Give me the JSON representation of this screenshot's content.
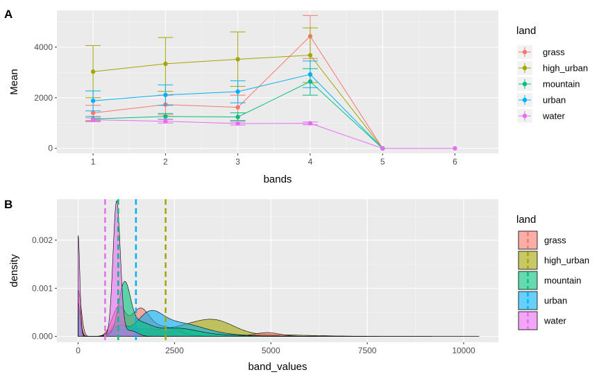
{
  "colors": {
    "grass": "#F8766D",
    "high_urban": "#A3A500",
    "mountain": "#00BF7D",
    "urban": "#00B0F6",
    "water": "#E76BF3"
  },
  "chart_data": [
    {
      "tag": "A",
      "type": "line",
      "xlabel": "bands",
      "ylabel": "Mean",
      "xlim": [
        0.5,
        6.6
      ],
      "ylim": [
        -200,
        5450
      ],
      "x_ticks": [
        1,
        2,
        3,
        4,
        5,
        6
      ],
      "y_ticks": [
        0,
        2000,
        4000
      ],
      "grid": true,
      "legend": {
        "title": "land",
        "position": "right"
      },
      "series": [
        {
          "name": "grass",
          "points": [
            {
              "x": 1,
              "y": 1400,
              "lo": 1100,
              "hi": 1700
            },
            {
              "x": 2,
              "y": 1730,
              "lo": 1330,
              "hi": 2100
            },
            {
              "x": 3,
              "y": 1620,
              "lo": 1100,
              "hi": 2100
            },
            {
              "x": 4,
              "y": 4430,
              "lo": 3550,
              "hi": 5250
            },
            {
              "x": 5,
              "y": 0,
              "lo": 0,
              "hi": 0
            }
          ]
        },
        {
          "name": "high_urban",
          "points": [
            {
              "x": 1,
              "y": 3030,
              "lo": 2000,
              "hi": 4060
            },
            {
              "x": 2,
              "y": 3340,
              "lo": 2250,
              "hi": 4380
            },
            {
              "x": 3,
              "y": 3520,
              "lo": 2450,
              "hi": 4600
            },
            {
              "x": 4,
              "y": 3680,
              "lo": 2600,
              "hi": 4760
            },
            {
              "x": 5,
              "y": 0,
              "lo": 0,
              "hi": 0
            }
          ]
        },
        {
          "name": "mountain",
          "points": [
            {
              "x": 1,
              "y": 1160,
              "lo": 1060,
              "hi": 1260
            },
            {
              "x": 2,
              "y": 1260,
              "lo": 1150,
              "hi": 1380
            },
            {
              "x": 3,
              "y": 1240,
              "lo": 1100,
              "hi": 1400
            },
            {
              "x": 4,
              "y": 2640,
              "lo": 2100,
              "hi": 3150
            },
            {
              "x": 5,
              "y": 0,
              "lo": 0,
              "hi": 0
            }
          ]
        },
        {
          "name": "urban",
          "points": [
            {
              "x": 1,
              "y": 1880,
              "lo": 1480,
              "hi": 2270
            },
            {
              "x": 2,
              "y": 2110,
              "lo": 1700,
              "hi": 2510
            },
            {
              "x": 3,
              "y": 2240,
              "lo": 1800,
              "hi": 2670
            },
            {
              "x": 4,
              "y": 2920,
              "lo": 2400,
              "hi": 3450
            },
            {
              "x": 5,
              "y": 0,
              "lo": 0,
              "hi": 0
            }
          ]
        },
        {
          "name": "water",
          "points": [
            {
              "x": 1,
              "y": 1130,
              "lo": 1050,
              "hi": 1200
            },
            {
              "x": 2,
              "y": 1070,
              "lo": 1000,
              "hi": 1140
            },
            {
              "x": 3,
              "y": 980,
              "lo": 920,
              "hi": 1040
            },
            {
              "x": 4,
              "y": 990,
              "lo": 930,
              "hi": 1040
            },
            {
              "x": 5,
              "y": 0,
              "lo": 0,
              "hi": 0
            },
            {
              "x": 6,
              "y": 0,
              "lo": 0,
              "hi": 0
            }
          ]
        }
      ]
    },
    {
      "tag": "B",
      "type": "area",
      "xlabel": "band_values",
      "ylabel": "density",
      "xlim": [
        -550,
        10900
      ],
      "ylim": [
        -0.00012,
        0.00285
      ],
      "x_ticks": [
        0,
        2500,
        5000,
        7500,
        10000
      ],
      "y_ticks": [
        0,
        0.001,
        0.002
      ],
      "y_tick_labels": [
        "0.000",
        "0.001",
        "0.002"
      ],
      "grid": true,
      "legend": {
        "title": "land",
        "position": "right"
      },
      "mean_lines": [
        {
          "name": "grass",
          "x": 1040
        },
        {
          "name": "high_urban",
          "x": 2270
        },
        {
          "name": "mountain",
          "x": 1040
        },
        {
          "name": "urban",
          "x": 1500
        },
        {
          "name": "water",
          "x": 700
        }
      ],
      "series": [
        {
          "name": "high_urban",
          "x_range": [
            0,
            10400
          ],
          "components": [
            {
              "mu": 0,
              "sigma": 60,
              "peak": 0.00045
            },
            {
              "mu": 1050,
              "sigma": 180,
              "peak": 0.00028
            },
            {
              "mu": 1550,
              "sigma": 350,
              "peak": 0.00012
            },
            {
              "mu": 2600,
              "sigma": 600,
              "peak": 0.00016
            },
            {
              "mu": 3550,
              "sigma": 520,
              "peak": 0.0003
            },
            {
              "mu": 5200,
              "sigma": 900,
              "peak": 3e-05
            },
            {
              "mu": 8200,
              "sigma": 1500,
              "peak": 4e-06
            }
          ]
        },
        {
          "name": "grass",
          "x_range": [
            0,
            5900
          ],
          "components": [
            {
              "mu": 0,
              "sigma": 80,
              "peak": 0.00095
            },
            {
              "mu": 1050,
              "sigma": 170,
              "peak": 0.0006
            },
            {
              "mu": 1600,
              "sigma": 230,
              "peak": 0.00052
            },
            {
              "mu": 2200,
              "sigma": 400,
              "peak": 0.0002
            },
            {
              "mu": 4900,
              "sigma": 330,
              "peak": 8e-05
            }
          ]
        },
        {
          "name": "urban",
          "x_range": [
            0,
            7800
          ],
          "components": [
            {
              "mu": 0,
              "sigma": 65,
              "peak": 0.00055
            },
            {
              "mu": 1050,
              "sigma": 180,
              "peak": 0.0002
            },
            {
              "mu": 1850,
              "sigma": 330,
              "peak": 0.0004
            },
            {
              "mu": 2550,
              "sigma": 600,
              "peak": 0.00025
            },
            {
              "mu": 3400,
              "sigma": 700,
              "peak": 5e-05
            },
            {
              "mu": 5500,
              "sigma": 1000,
              "peak": 6e-06
            }
          ]
        },
        {
          "name": "mountain",
          "x_range": [
            0,
            7000
          ],
          "components": [
            {
              "mu": 0,
              "sigma": 55,
              "peak": 0.0007
            },
            {
              "mu": 1200,
              "sigma": 150,
              "peak": 0.001
            },
            {
              "mu": 1550,
              "sigma": 300,
              "peak": 0.00025
            },
            {
              "mu": 2500,
              "sigma": 600,
              "peak": 0.00017
            },
            {
              "mu": 4000,
              "sigma": 800,
              "peak": 2e-05
            }
          ]
        },
        {
          "name": "water",
          "x_range": [
            0,
            2600
          ],
          "components": [
            {
              "mu": 0,
              "sigma": 45,
              "peak": 0.0021
            },
            {
              "mu": 1000,
              "sigma": 95,
              "peak": 0.0028
            },
            {
              "mu": 1350,
              "sigma": 180,
              "peak": 0.00012
            }
          ]
        }
      ]
    }
  ]
}
